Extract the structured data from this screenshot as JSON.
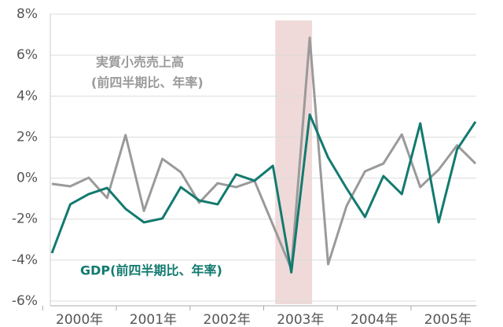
{
  "chart_data": {
    "type": "line",
    "categories": [
      "2000年",
      null,
      null,
      null,
      "2001年",
      null,
      null,
      null,
      "2002年",
      null,
      null,
      null,
      "2003年",
      null,
      null,
      null,
      "2004年",
      null,
      null,
      null,
      "2005年",
      null,
      null,
      null
    ],
    "series": [
      {
        "name": "実質小売売上高",
        "name_note": "(前四半期比、年率)",
        "color": "#9a9a9a",
        "values": [
          -0.28,
          -0.4,
          0.02,
          -0.97,
          2.1,
          -1.6,
          0.94,
          0.29,
          -1.2,
          -0.25,
          -0.44,
          -0.13,
          -2.28,
          -4.43,
          6.85,
          -4.2,
          -1.36,
          0.33,
          0.71,
          2.13,
          -0.44,
          0.41,
          1.6,
          0.71
        ]
      },
      {
        "name": "GDP(前四半期比、年率)",
        "color": "#137a70",
        "values": [
          -3.66,
          -1.28,
          -0.78,
          -0.48,
          -1.5,
          -2.16,
          -1.97,
          -0.44,
          -1.09,
          -1.28,
          0.18,
          -0.13,
          0.6,
          -4.6,
          3.1,
          1.0,
          -0.5,
          -1.9,
          0.1,
          -0.78,
          2.67,
          -2.16,
          1.4,
          2.75
        ]
      }
    ],
    "ylim": [
      -6,
      8
    ],
    "yticks": [
      {
        "value": -6,
        "label": "-6%"
      },
      {
        "value": -4,
        "label": "-4%"
      },
      {
        "value": -2,
        "label": "-2%"
      },
      {
        "value": 0,
        "label": "0%"
      },
      {
        "value": 2,
        "label": "2%"
      },
      {
        "value": 4,
        "label": "4%"
      },
      {
        "value": 6,
        "label": "6%"
      },
      {
        "value": 8,
        "label": "8%"
      }
    ],
    "grid": true,
    "highlight": [
      12,
      14
    ],
    "highlight_color": "#f0d9d9"
  }
}
